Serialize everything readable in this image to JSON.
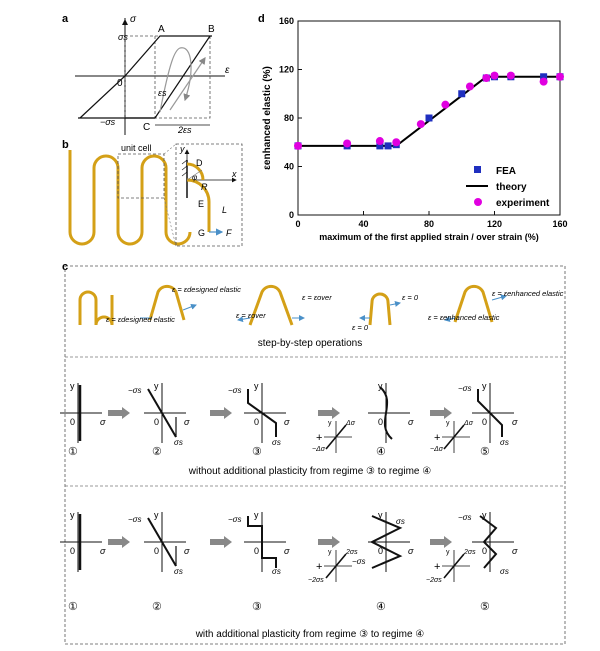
{
  "panels": {
    "a": {
      "label": "a",
      "sigma": "σ",
      "eps": "ε",
      "sigma_s": "σs",
      "neg_sigma_s": "−σs",
      "zero": "0",
      "A": "A",
      "B": "B",
      "C": "C",
      "eps_s": "εs",
      "two_eps_s": "2εs"
    },
    "b": {
      "label": "b",
      "unit_cell": "unit cell",
      "y": "y",
      "x": "x",
      "D": "D",
      "R": "R",
      "E": "E",
      "L": "L",
      "G": "G",
      "F": "F",
      "phi": "φ"
    },
    "c": {
      "label": "c",
      "eq1": "ε = εdesigned elastic",
      "eq2": "ε = εdesigned elastic",
      "eq3": "ε = εover",
      "eq4": "ε = εover",
      "eq5": "ε = 0",
      "eq6": "ε = 0",
      "eq7": "ε = εenhanced elastic",
      "eq8": "ε = εenhanced elastic",
      "step_caption": "step-by-step operations",
      "row1_caption": "without  additional plasticity from regime ③ to regime ④",
      "row2_caption": "with  additional plasticity from regime ③ to regime ④",
      "steps": [
        "①",
        "②",
        "③",
        "④",
        "⑤"
      ],
      "y": "y",
      "sigma": "σ",
      "zero": "0",
      "sigma_s": "σs",
      "neg_sigma_s": "−σs",
      "dsig": "Δσ",
      "neg_dsig": "−Δσ",
      "two_sigma_s": "2σs",
      "neg_two_sigma_s": "−2σs",
      "plus": "+"
    },
    "d": {
      "label": "d"
    }
  },
  "chart_data": {
    "type": "scatter",
    "xlabel": "maximum of the first applied strain / over strain (%)",
    "ylabel": "εenhanced elastic (%)",
    "xlim": [
      0,
      160
    ],
    "ylim": [
      0,
      160
    ],
    "xticks": [
      "0",
      "40",
      "80",
      "120",
      "160"
    ],
    "yticks": [
      "0",
      "40",
      "80",
      "120",
      "160"
    ],
    "legend_position": "bottom-right",
    "series": [
      {
        "name": "FEA",
        "marker": "square",
        "color": "#1f2fbf",
        "x": [
          0,
          30,
          50,
          55,
          60,
          80,
          100,
          115,
          120,
          130,
          150,
          160
        ],
        "y": [
          57,
          57,
          57,
          57,
          58,
          80,
          100,
          113,
          114,
          114,
          114,
          114
        ]
      },
      {
        "name": "theory",
        "marker": "line",
        "color": "#000000",
        "x": [
          0,
          60,
          115,
          160
        ],
        "y": [
          57,
          57,
          114,
          114
        ]
      },
      {
        "name": "experiment",
        "marker": "circle",
        "color": "#e000e0",
        "x": [
          0,
          30,
          50,
          60,
          75,
          90,
          105,
          115,
          120,
          130,
          150,
          160
        ],
        "y": [
          57,
          59,
          61,
          60,
          75,
          91,
          106,
          113,
          115,
          115,
          110,
          114
        ]
      }
    ]
  }
}
